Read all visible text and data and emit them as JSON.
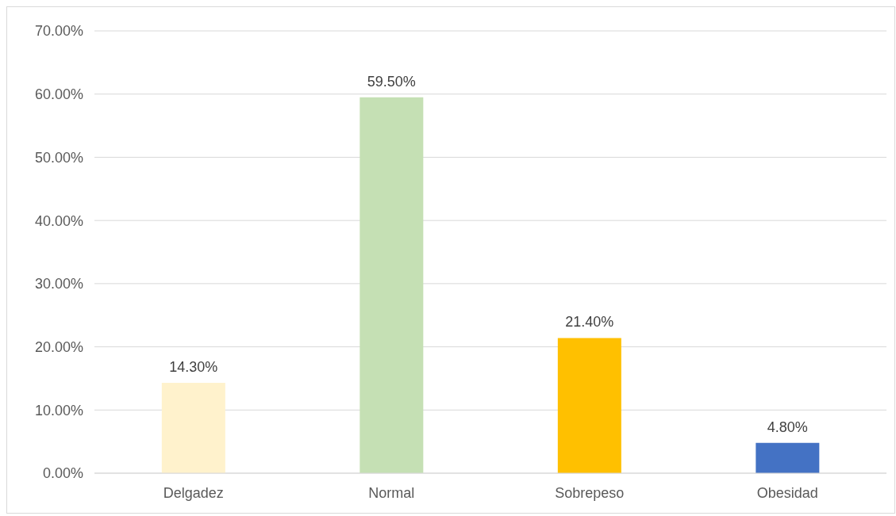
{
  "chart_data": {
    "type": "bar",
    "categories": [
      "Delgadez",
      "Normal",
      "Sobrepeso",
      "Obesidad"
    ],
    "values": [
      14.3,
      59.5,
      21.4,
      4.8
    ],
    "colors": [
      "#fff2cc",
      "#c5e0b4",
      "#ffc000",
      "#4472c4"
    ],
    "value_labels": [
      "14.30%",
      "59.50%",
      "21.40%",
      "4.80%"
    ],
    "ylim": [
      0,
      70
    ],
    "yticks": [
      {
        "value": 0,
        "label": "0.00%"
      },
      {
        "value": 10,
        "label": "10.00%"
      },
      {
        "value": 20,
        "label": "20.00%"
      },
      {
        "value": 30,
        "label": "30.00%"
      },
      {
        "value": 40,
        "label": "40.00%"
      },
      {
        "value": 50,
        "label": "50.00%"
      },
      {
        "value": 60,
        "label": "60.00%"
      },
      {
        "value": 70,
        "label": "70.00%"
      }
    ],
    "grid": "y"
  }
}
